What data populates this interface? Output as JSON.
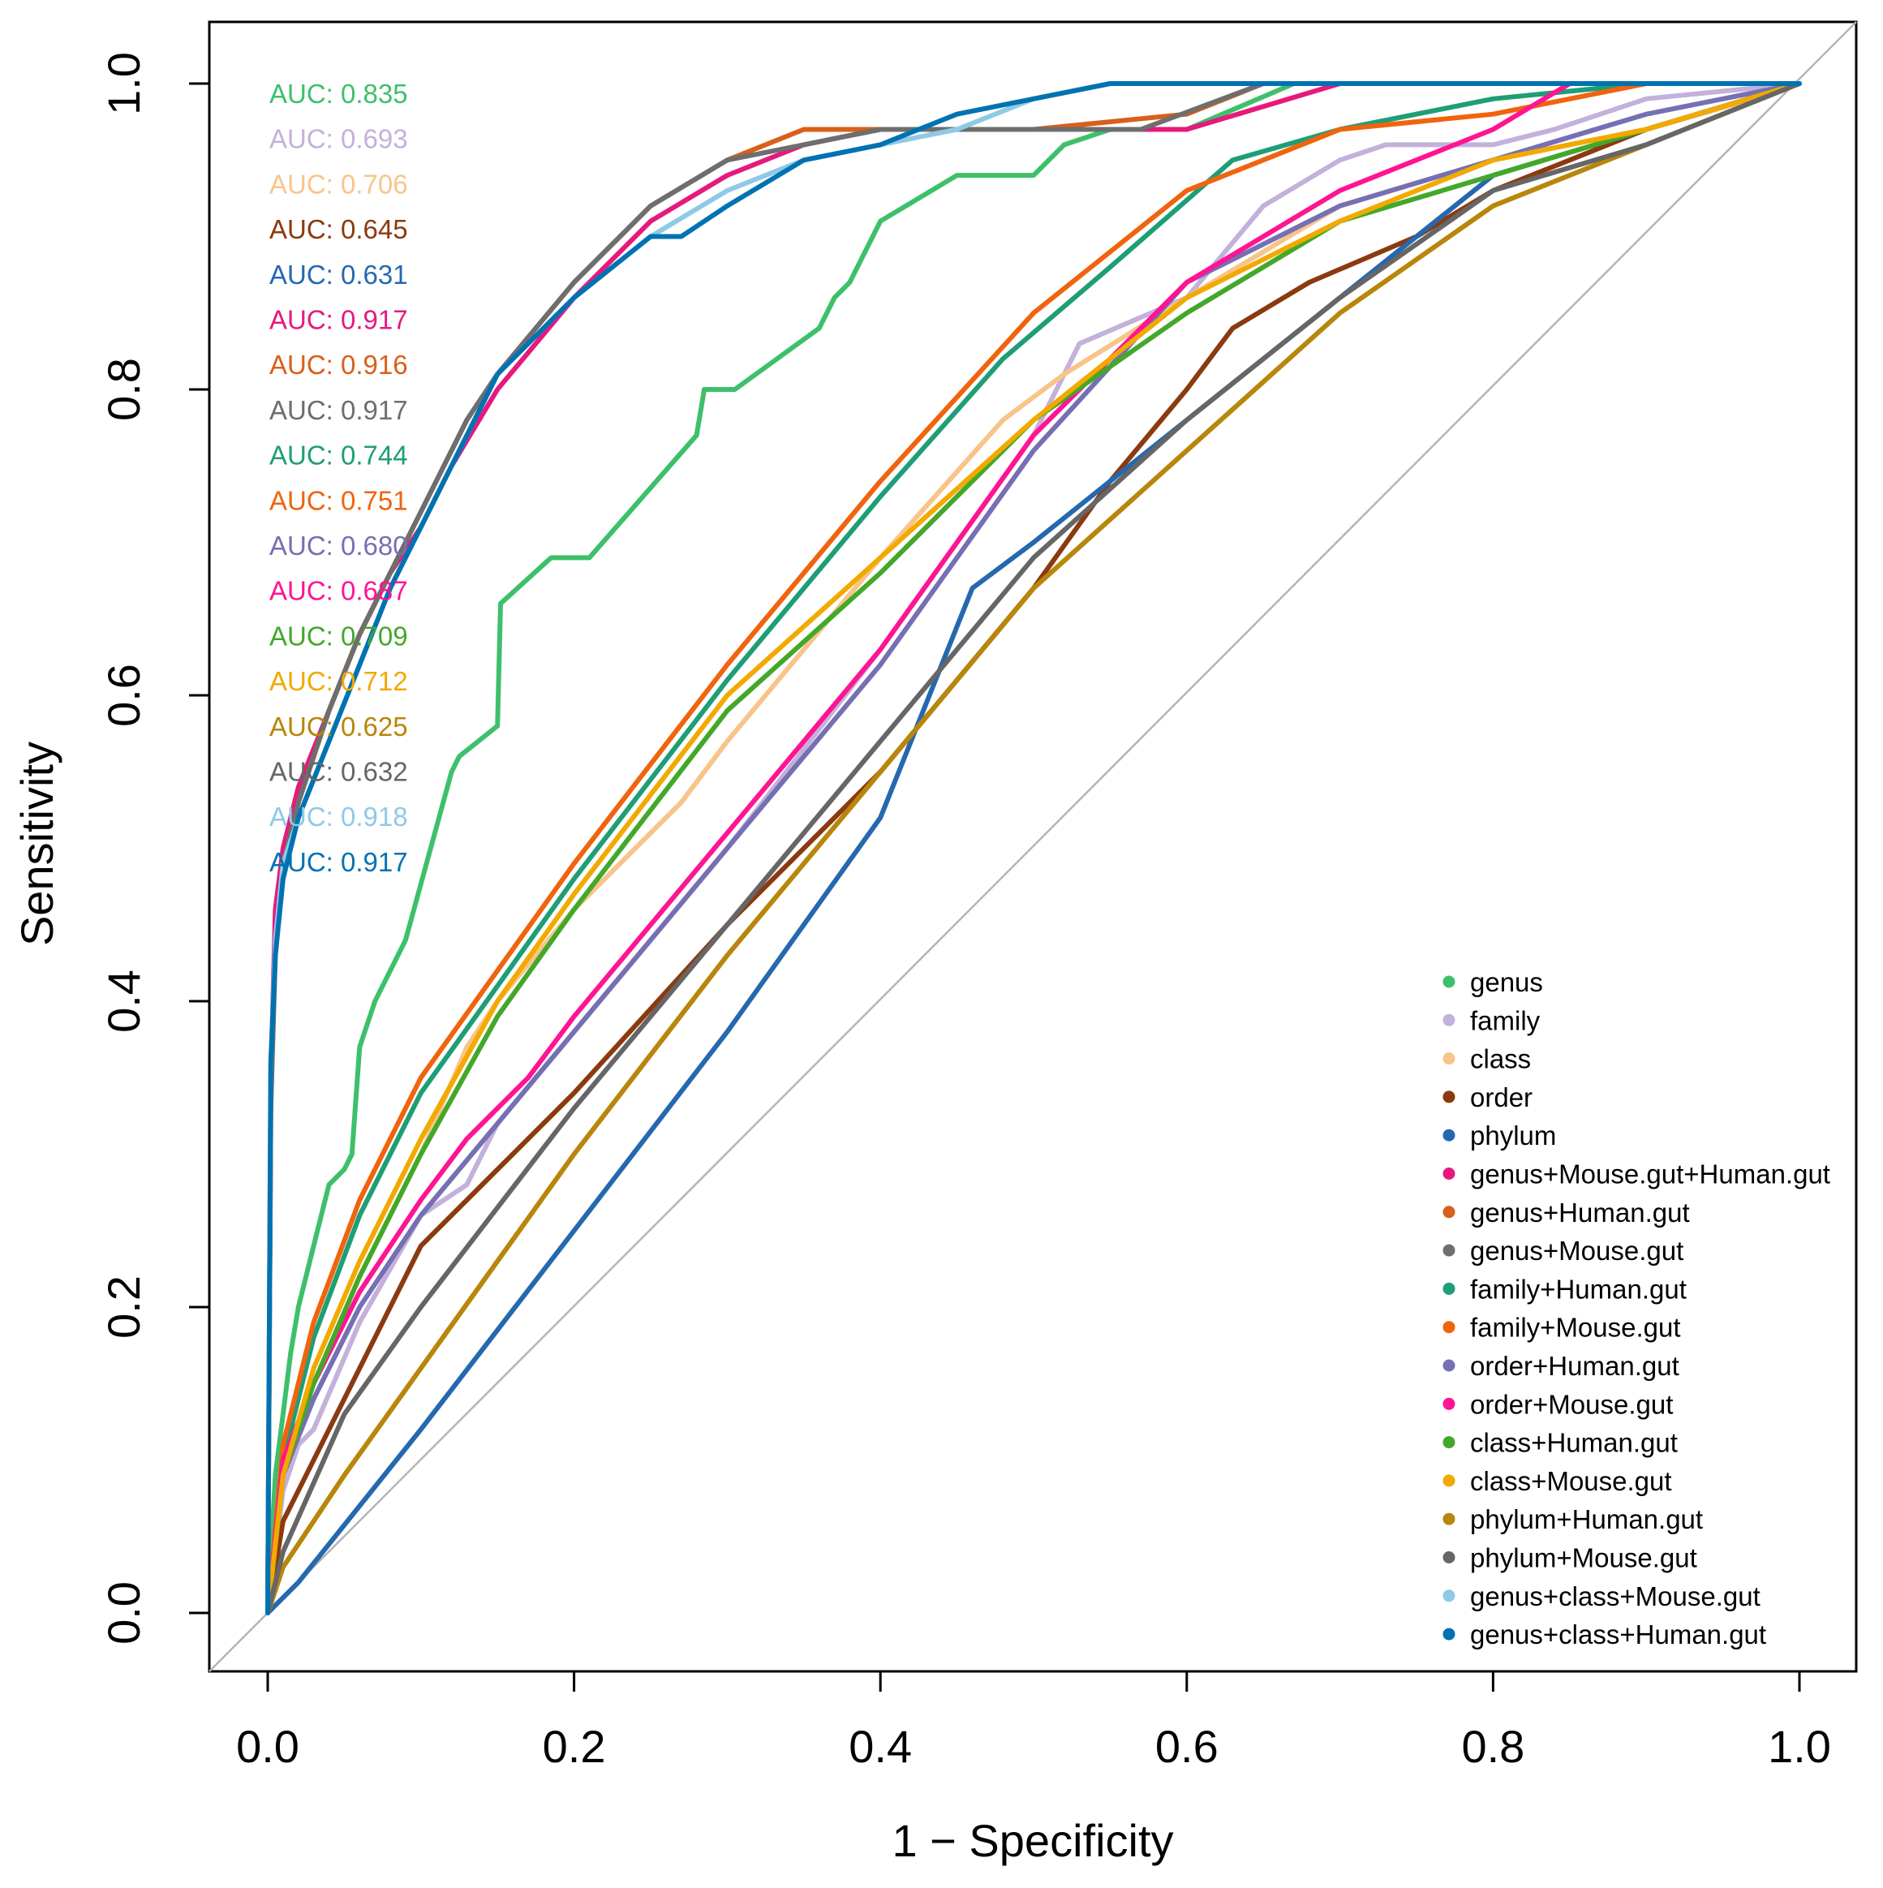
{
  "chart_data": {
    "type": "line",
    "title": "",
    "xlabel": "1 − Specificity",
    "ylabel": "Sensitivity",
    "xlim": [
      0,
      1
    ],
    "ylim": [
      0,
      1
    ],
    "x_ticks": [
      "0.0",
      "0.2",
      "0.4",
      "0.6",
      "0.8",
      "1.0"
    ],
    "y_ticks": [
      "0.0",
      "0.2",
      "0.4",
      "0.6",
      "0.8",
      "1.0"
    ],
    "legend_position": "bottom-right",
    "reference_line": {
      "from": [
        0,
        0
      ],
      "to": [
        1,
        1
      ],
      "color": "#b5b5b5"
    },
    "series": [
      {
        "name": "genus",
        "auc": "AUC: 0.835",
        "color": "#3ec06b",
        "x": [
          0,
          0.005,
          0.01,
          0.015,
          0.02,
          0.03,
          0.04,
          0.05,
          0.055,
          0.06,
          0.07,
          0.09,
          0.12,
          0.125,
          0.15,
          0.152,
          0.185,
          0.21,
          0.28,
          0.285,
          0.305,
          0.36,
          0.37,
          0.38,
          0.39,
          0.4,
          0.45,
          0.5,
          0.52,
          0.55,
          0.6,
          0.67,
          0.75,
          0.85,
          1.0
        ],
        "y": [
          0,
          0.09,
          0.13,
          0.17,
          0.2,
          0.24,
          0.28,
          0.29,
          0.3,
          0.37,
          0.4,
          0.44,
          0.55,
          0.56,
          0.58,
          0.66,
          0.69,
          0.69,
          0.77,
          0.8,
          0.8,
          0.84,
          0.86,
          0.87,
          0.89,
          0.91,
          0.94,
          0.94,
          0.96,
          0.97,
          0.97,
          1.0,
          1.0,
          1.0,
          1.0
        ]
      },
      {
        "name": "family",
        "auc": "AUC: 0.693",
        "color": "#c3b1dc",
        "x": [
          0,
          0.01,
          0.02,
          0.03,
          0.06,
          0.1,
          0.13,
          0.15,
          0.2,
          0.3,
          0.4,
          0.5,
          0.53,
          0.6,
          0.65,
          0.7,
          0.73,
          0.8,
          0.84,
          0.87,
          0.9,
          1.0
        ],
        "y": [
          0,
          0.08,
          0.11,
          0.12,
          0.19,
          0.26,
          0.28,
          0.32,
          0.38,
          0.5,
          0.63,
          0.77,
          0.83,
          0.86,
          0.92,
          0.95,
          0.96,
          0.96,
          0.97,
          0.98,
          0.99,
          1.0
        ]
      },
      {
        "name": "class",
        "auc": "AUC: 0.706",
        "color": "#f9c48a",
        "x": [
          0,
          0.01,
          0.03,
          0.06,
          0.1,
          0.13,
          0.15,
          0.2,
          0.27,
          0.3,
          0.4,
          0.48,
          0.52,
          0.6,
          0.7,
          0.8,
          0.9,
          0.97
        ],
        "y": [
          0,
          0.1,
          0.15,
          0.22,
          0.3,
          0.37,
          0.4,
          0.46,
          0.53,
          0.57,
          0.69,
          0.78,
          0.81,
          0.86,
          0.92,
          0.95,
          0.97,
          0.99
        ]
      },
      {
        "name": "order",
        "auc": "AUC: 0.645",
        "color": "#8b3a0f",
        "x": [
          0,
          0.01,
          0.05,
          0.1,
          0.2,
          0.3,
          0.4,
          0.5,
          0.55,
          0.6,
          0.63,
          0.68,
          0.75,
          0.8,
          0.85,
          0.9,
          1.0
        ],
        "y": [
          0,
          0.06,
          0.14,
          0.24,
          0.34,
          0.45,
          0.55,
          0.67,
          0.74,
          0.8,
          0.84,
          0.87,
          0.9,
          0.93,
          0.95,
          0.97,
          1.0
        ]
      },
      {
        "name": "phylum",
        "auc": "AUC: 0.631",
        "color": "#2668b0",
        "x": [
          0,
          0.02,
          0.1,
          0.2,
          0.3,
          0.4,
          0.46,
          0.5,
          0.6,
          0.7,
          0.8,
          0.9,
          1.0
        ],
        "y": [
          0,
          0.02,
          0.12,
          0.25,
          0.38,
          0.52,
          0.67,
          0.7,
          0.78,
          0.86,
          0.94,
          0.97,
          1.0
        ]
      },
      {
        "name": "genus+Mouse.gut+Human.gut",
        "auc": "AUC: 0.917",
        "color": "#e6197d",
        "x": [
          0,
          0.002,
          0.005,
          0.01,
          0.02,
          0.04,
          0.06,
          0.08,
          0.1,
          0.12,
          0.15,
          0.2,
          0.25,
          0.3,
          0.35,
          0.4,
          0.45,
          0.5,
          0.6,
          0.7,
          1.0
        ],
        "y": [
          0,
          0.35,
          0.46,
          0.5,
          0.54,
          0.59,
          0.64,
          0.68,
          0.71,
          0.75,
          0.8,
          0.86,
          0.91,
          0.94,
          0.96,
          0.97,
          0.97,
          0.97,
          0.97,
          1.0,
          1.0
        ]
      },
      {
        "name": "genus+Human.gut",
        "auc": "AUC: 0.916",
        "color": "#d95f1a",
        "x": [
          0,
          0.002,
          0.005,
          0.01,
          0.02,
          0.04,
          0.06,
          0.08,
          0.1,
          0.13,
          0.15,
          0.2,
          0.25,
          0.3,
          0.35,
          0.4,
          0.45,
          0.5,
          0.6,
          0.65,
          1.0
        ],
        "y": [
          0,
          0.33,
          0.44,
          0.49,
          0.53,
          0.59,
          0.64,
          0.68,
          0.72,
          0.78,
          0.81,
          0.87,
          0.92,
          0.95,
          0.97,
          0.97,
          0.97,
          0.97,
          0.98,
          1.0,
          1.0
        ]
      },
      {
        "name": "genus+Mouse.gut",
        "auc": "AUC: 0.917",
        "color": "#6e6e6e",
        "x": [
          0,
          0.002,
          0.005,
          0.01,
          0.02,
          0.04,
          0.06,
          0.08,
          0.1,
          0.13,
          0.15,
          0.2,
          0.25,
          0.3,
          0.35,
          0.4,
          0.45,
          0.5,
          0.57,
          0.65,
          1.0
        ],
        "y": [
          0,
          0.33,
          0.43,
          0.49,
          0.53,
          0.59,
          0.64,
          0.68,
          0.72,
          0.78,
          0.81,
          0.87,
          0.92,
          0.95,
          0.96,
          0.97,
          0.97,
          0.97,
          0.97,
          1.0,
          1.0
        ]
      },
      {
        "name": "family+Human.gut",
        "auc": "AUC: 0.744",
        "color": "#1e9e77",
        "x": [
          0,
          0.01,
          0.03,
          0.06,
          0.1,
          0.15,
          0.2,
          0.3,
          0.4,
          0.48,
          0.55,
          0.63,
          0.7,
          0.8,
          0.9,
          1.0
        ],
        "y": [
          0,
          0.1,
          0.18,
          0.26,
          0.34,
          0.41,
          0.48,
          0.61,
          0.73,
          0.82,
          0.88,
          0.95,
          0.97,
          0.99,
          1.0,
          1.0
        ]
      },
      {
        "name": "family+Mouse.gut",
        "auc": "AUC: 0.751",
        "color": "#f0640e",
        "x": [
          0,
          0.01,
          0.03,
          0.06,
          0.1,
          0.15,
          0.2,
          0.3,
          0.4,
          0.5,
          0.6,
          0.7,
          0.8,
          0.9,
          1.0
        ],
        "y": [
          0,
          0.11,
          0.19,
          0.27,
          0.35,
          0.42,
          0.49,
          0.62,
          0.74,
          0.85,
          0.93,
          0.97,
          0.98,
          1.0,
          1.0
        ]
      },
      {
        "name": "order+Human.gut",
        "auc": "AUC: 0.680",
        "color": "#7570b3",
        "x": [
          0,
          0.01,
          0.03,
          0.06,
          0.1,
          0.15,
          0.2,
          0.3,
          0.4,
          0.5,
          0.6,
          0.7,
          0.8,
          0.9,
          1.0
        ],
        "y": [
          0,
          0.09,
          0.14,
          0.2,
          0.26,
          0.32,
          0.38,
          0.5,
          0.62,
          0.76,
          0.87,
          0.92,
          0.95,
          0.98,
          1.0
        ]
      },
      {
        "name": "order+Mouse.gut",
        "auc": "AUC: 0.687",
        "color": "#ff1493",
        "x": [
          0,
          0.01,
          0.03,
          0.06,
          0.1,
          0.13,
          0.17,
          0.2,
          0.3,
          0.4,
          0.5,
          0.6,
          0.7,
          0.8,
          0.85,
          1.0
        ],
        "y": [
          0,
          0.1,
          0.15,
          0.21,
          0.27,
          0.31,
          0.35,
          0.39,
          0.51,
          0.63,
          0.77,
          0.87,
          0.93,
          0.97,
          1.0,
          1.0
        ]
      },
      {
        "name": "class+Human.gut",
        "auc": "AUC: 0.709",
        "color": "#43a82a",
        "x": [
          0,
          0.01,
          0.03,
          0.06,
          0.1,
          0.15,
          0.2,
          0.3,
          0.4,
          0.5,
          0.6,
          0.7,
          0.8,
          0.9,
          1.0
        ],
        "y": [
          0,
          0.09,
          0.15,
          0.22,
          0.3,
          0.39,
          0.46,
          0.59,
          0.68,
          0.78,
          0.85,
          0.91,
          0.94,
          0.97,
          1.0
        ]
      },
      {
        "name": "class+Mouse.gut",
        "auc": "AUC: 0.712",
        "color": "#f2a900",
        "x": [
          0,
          0.01,
          0.03,
          0.06,
          0.1,
          0.15,
          0.2,
          0.3,
          0.4,
          0.5,
          0.6,
          0.7,
          0.8,
          0.9,
          1.0
        ],
        "y": [
          0,
          0.09,
          0.16,
          0.23,
          0.31,
          0.4,
          0.47,
          0.6,
          0.69,
          0.78,
          0.86,
          0.91,
          0.95,
          0.97,
          1.0
        ]
      },
      {
        "name": "phylum+Human.gut",
        "auc": "AUC: 0.625",
        "color": "#b8860b",
        "x": [
          0,
          0.01,
          0.05,
          0.1,
          0.2,
          0.3,
          0.4,
          0.5,
          0.6,
          0.7,
          0.8,
          0.9,
          1.0
        ],
        "y": [
          0,
          0.03,
          0.09,
          0.16,
          0.3,
          0.43,
          0.55,
          0.67,
          0.76,
          0.85,
          0.92,
          0.96,
          1.0
        ]
      },
      {
        "name": "phylum+Mouse.gut",
        "auc": "AUC: 0.632",
        "color": "#666666",
        "x": [
          0,
          0.01,
          0.05,
          0.1,
          0.2,
          0.3,
          0.4,
          0.5,
          0.6,
          0.7,
          0.8,
          0.9,
          1.0
        ],
        "y": [
          0,
          0.04,
          0.13,
          0.2,
          0.33,
          0.45,
          0.57,
          0.69,
          0.78,
          0.86,
          0.93,
          0.96,
          1.0
        ]
      },
      {
        "name": "genus+class+Mouse.gut",
        "auc": "AUC: 0.918",
        "color": "#8ecae6",
        "x": [
          0,
          0.002,
          0.005,
          0.01,
          0.02,
          0.04,
          0.06,
          0.08,
          0.1,
          0.12,
          0.15,
          0.2,
          0.25,
          0.3,
          0.35,
          0.4,
          0.45,
          0.5,
          0.55,
          0.6,
          1.0
        ],
        "y": [
          0,
          0.36,
          0.44,
          0.49,
          0.52,
          0.57,
          0.62,
          0.67,
          0.71,
          0.75,
          0.81,
          0.86,
          0.9,
          0.93,
          0.95,
          0.96,
          0.97,
          0.99,
          1.0,
          1.0,
          1.0
        ]
      },
      {
        "name": "genus+class+Human.gut",
        "auc": "AUC: 0.917",
        "color": "#0072b2",
        "x": [
          0,
          0.002,
          0.005,
          0.01,
          0.02,
          0.04,
          0.06,
          0.08,
          0.1,
          0.12,
          0.15,
          0.2,
          0.25,
          0.27,
          0.3,
          0.35,
          0.4,
          0.45,
          0.5,
          0.55,
          0.6,
          1.0
        ],
        "y": [
          0,
          0.36,
          0.43,
          0.48,
          0.52,
          0.57,
          0.62,
          0.67,
          0.71,
          0.75,
          0.81,
          0.86,
          0.9,
          0.9,
          0.92,
          0.95,
          0.96,
          0.98,
          0.99,
          1.0,
          1.0,
          1.0
        ]
      }
    ]
  }
}
